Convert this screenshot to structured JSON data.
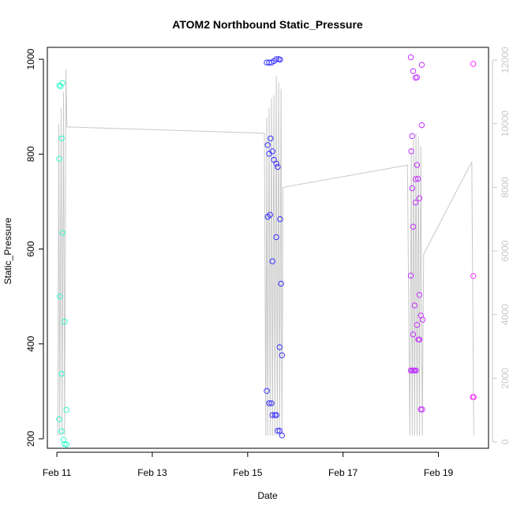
{
  "chart_data": {
    "type": "scatter",
    "title": "ATOM2 Northbound Static_Pressure",
    "xlabel": "Date",
    "ylabel": "Static_Pressure",
    "x_ticks": [
      "Feb 11",
      "Feb 13",
      "Feb 15",
      "Feb 17",
      "Feb 19"
    ],
    "x_tick_values": [
      11,
      13,
      15,
      17,
      19
    ],
    "xlim": [
      10.8,
      20.05
    ],
    "ylim": [
      180,
      1025
    ],
    "y_ticks": [
      200,
      400,
      600,
      800,
      1000
    ],
    "y2_ticks": [
      0,
      2000,
      4000,
      6000,
      8000,
      10000,
      12000
    ],
    "y2lim": [
      -200,
      12400
    ],
    "grid": false,
    "legend": "none",
    "point_color_start": "#33ffcc",
    "point_color_mid": "#3333ff",
    "point_color_end": "#ff33ff",
    "line_color": "#c8c8c8",
    "points": [
      {
        "x": 11.05,
        "y": 945
      },
      {
        "x": 11.08,
        "y": 943
      },
      {
        "x": 11.12,
        "y": 950
      },
      {
        "x": 11.05,
        "y": 790
      },
      {
        "x": 11.1,
        "y": 833
      },
      {
        "x": 11.12,
        "y": 634
      },
      {
        "x": 11.06,
        "y": 500
      },
      {
        "x": 11.16,
        "y": 447
      },
      {
        "x": 11.1,
        "y": 337
      },
      {
        "x": 11.2,
        "y": 261
      },
      {
        "x": 11.05,
        "y": 241
      },
      {
        "x": 11.1,
        "y": 216
      },
      {
        "x": 11.14,
        "y": 198
      },
      {
        "x": 11.16,
        "y": 189
      },
      {
        "x": 11.2,
        "y": 188
      },
      {
        "x": 15.4,
        "y": 993
      },
      {
        "x": 15.45,
        "y": 993
      },
      {
        "x": 15.5,
        "y": 993
      },
      {
        "x": 15.55,
        "y": 996
      },
      {
        "x": 15.6,
        "y": 1000
      },
      {
        "x": 15.65,
        "y": 1000
      },
      {
        "x": 15.68,
        "y": 999
      },
      {
        "x": 15.42,
        "y": 819
      },
      {
        "x": 15.48,
        "y": 833
      },
      {
        "x": 15.45,
        "y": 801
      },
      {
        "x": 15.52,
        "y": 806
      },
      {
        "x": 15.55,
        "y": 788
      },
      {
        "x": 15.6,
        "y": 780
      },
      {
        "x": 15.63,
        "y": 773
      },
      {
        "x": 15.42,
        "y": 668
      },
      {
        "x": 15.47,
        "y": 672
      },
      {
        "x": 15.68,
        "y": 663
      },
      {
        "x": 15.6,
        "y": 625
      },
      {
        "x": 15.52,
        "y": 574
      },
      {
        "x": 15.7,
        "y": 527
      },
      {
        "x": 15.67,
        "y": 393
      },
      {
        "x": 15.72,
        "y": 376
      },
      {
        "x": 15.4,
        "y": 301
      },
      {
        "x": 15.45,
        "y": 275
      },
      {
        "x": 15.5,
        "y": 275
      },
      {
        "x": 15.52,
        "y": 250
      },
      {
        "x": 15.57,
        "y": 250
      },
      {
        "x": 15.6,
        "y": 250
      },
      {
        "x": 15.63,
        "y": 217
      },
      {
        "x": 15.67,
        "y": 217
      },
      {
        "x": 15.72,
        "y": 207
      },
      {
        "x": 18.42,
        "y": 1004
      },
      {
        "x": 18.47,
        "y": 975
      },
      {
        "x": 18.52,
        "y": 961
      },
      {
        "x": 18.55,
        "y": 962
      },
      {
        "x": 18.65,
        "y": 988
      },
      {
        "x": 18.65,
        "y": 861
      },
      {
        "x": 18.45,
        "y": 838
      },
      {
        "x": 18.43,
        "y": 806
      },
      {
        "x": 18.55,
        "y": 777
      },
      {
        "x": 18.52,
        "y": 747
      },
      {
        "x": 18.57,
        "y": 748
      },
      {
        "x": 18.45,
        "y": 728
      },
      {
        "x": 18.6,
        "y": 707
      },
      {
        "x": 18.52,
        "y": 698
      },
      {
        "x": 18.47,
        "y": 647
      },
      {
        "x": 18.42,
        "y": 544
      },
      {
        "x": 18.6,
        "y": 503
      },
      {
        "x": 18.5,
        "y": 481
      },
      {
        "x": 18.63,
        "y": 460
      },
      {
        "x": 18.67,
        "y": 451
      },
      {
        "x": 18.55,
        "y": 440
      },
      {
        "x": 18.47,
        "y": 420
      },
      {
        "x": 18.58,
        "y": 409
      },
      {
        "x": 18.6,
        "y": 409
      },
      {
        "x": 18.42,
        "y": 344
      },
      {
        "x": 18.45,
        "y": 344
      },
      {
        "x": 18.48,
        "y": 344
      },
      {
        "x": 18.5,
        "y": 344
      },
      {
        "x": 18.53,
        "y": 344
      },
      {
        "x": 18.63,
        "y": 262
      },
      {
        "x": 18.66,
        "y": 262
      },
      {
        "x": 19.73,
        "y": 990
      },
      {
        "x": 19.73,
        "y": 543
      },
      {
        "x": 19.72,
        "y": 288
      },
      {
        "x": 19.74,
        "y": 288
      }
    ],
    "secondary_line": [
      {
        "x": 11.02,
        "y": 200
      },
      {
        "x": 11.04,
        "y": 10000
      },
      {
        "x": 11.06,
        "y": 200
      },
      {
        "x": 11.09,
        "y": 10500
      },
      {
        "x": 11.11,
        "y": 200
      },
      {
        "x": 11.14,
        "y": 11000
      },
      {
        "x": 11.16,
        "y": 200
      },
      {
        "x": 11.19,
        "y": 11700
      },
      {
        "x": 11.21,
        "y": 9900
      },
      {
        "x": 15.35,
        "y": 9700
      },
      {
        "x": 15.38,
        "y": 200
      },
      {
        "x": 15.4,
        "y": 10200
      },
      {
        "x": 15.42,
        "y": 200
      },
      {
        "x": 15.45,
        "y": 10500
      },
      {
        "x": 15.47,
        "y": 200
      },
      {
        "x": 15.5,
        "y": 10800
      },
      {
        "x": 15.52,
        "y": 200
      },
      {
        "x": 15.55,
        "y": 10900
      },
      {
        "x": 15.57,
        "y": 200
      },
      {
        "x": 15.6,
        "y": 11500
      },
      {
        "x": 15.62,
        "y": 200
      },
      {
        "x": 15.65,
        "y": 11300
      },
      {
        "x": 15.67,
        "y": 200
      },
      {
        "x": 15.7,
        "y": 11100
      },
      {
        "x": 15.72,
        "y": 200
      },
      {
        "x": 15.74,
        "y": 8000
      },
      {
        "x": 18.35,
        "y": 8700
      },
      {
        "x": 18.4,
        "y": 200
      },
      {
        "x": 18.43,
        "y": 9200
      },
      {
        "x": 18.45,
        "y": 200
      },
      {
        "x": 18.48,
        "y": 9500
      },
      {
        "x": 18.5,
        "y": 200
      },
      {
        "x": 18.53,
        "y": 9700
      },
      {
        "x": 18.55,
        "y": 200
      },
      {
        "x": 18.58,
        "y": 9600
      },
      {
        "x": 18.6,
        "y": 200
      },
      {
        "x": 18.63,
        "y": 9300
      },
      {
        "x": 18.66,
        "y": 200
      },
      {
        "x": 18.69,
        "y": 5900
      },
      {
        "x": 19.7,
        "y": 8800
      },
      {
        "x": 19.74,
        "y": 200
      }
    ]
  }
}
